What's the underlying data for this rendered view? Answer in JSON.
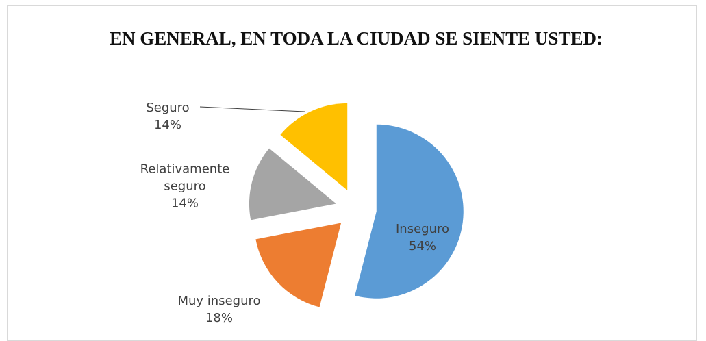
{
  "chart_data": {
    "type": "pie",
    "title": "EN GENERAL, EN TODA LA CIUDAD SE SIENTE USTED:",
    "categories": [
      "Inseguro",
      "Muy inseguro",
      "Relativamente seguro",
      "Seguro"
    ],
    "values": [
      54,
      18,
      14,
      14
    ],
    "value_labels": [
      "54%",
      "18%",
      "14%",
      "14%"
    ],
    "colors": [
      "#5b9bd5",
      "#ed7d31",
      "#a5a5a5",
      "#ffc000"
    ]
  }
}
